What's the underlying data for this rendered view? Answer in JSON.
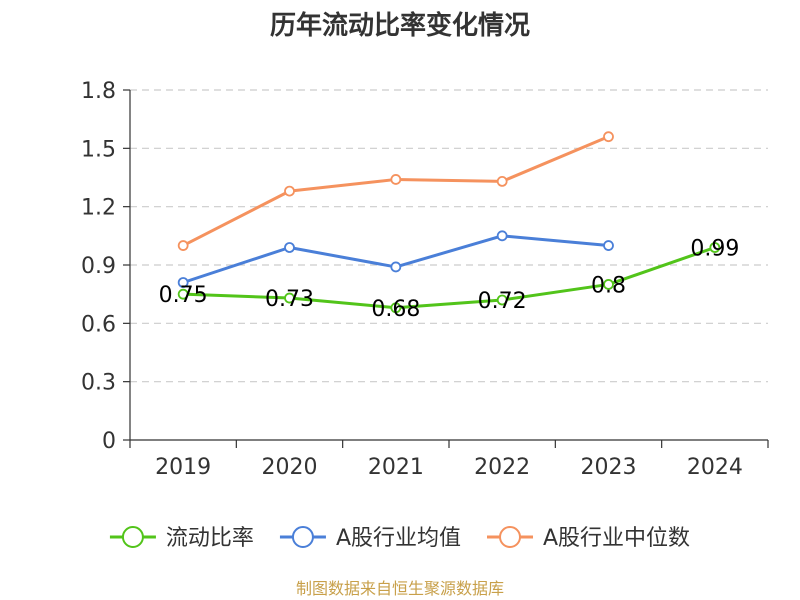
{
  "chart_data": {
    "type": "line",
    "title": "历年流动比率变化情况",
    "categories": [
      "2019",
      "2020",
      "2021",
      "2022",
      "2023",
      "2024"
    ],
    "ylim": [
      0,
      1.8
    ],
    "yticks": [
      "0",
      "0.3",
      "0.6",
      "0.9",
      "1.2",
      "1.5",
      "1.8"
    ],
    "grid": true,
    "legend_position": "bottom",
    "series": [
      {
        "name": "流动比率",
        "color": "#52c41a",
        "values": [
          0.75,
          0.73,
          0.68,
          0.72,
          0.8,
          0.99
        ],
        "labels": [
          "0.75",
          "0.73",
          "0.68",
          "0.72",
          "0.8",
          "0.99"
        ]
      },
      {
        "name": "A股行业均值",
        "color": "#4a7fd8",
        "values": [
          0.81,
          0.99,
          0.89,
          1.05,
          1.0,
          null
        ]
      },
      {
        "name": "A股行业中位数",
        "color": "#f5925e",
        "values": [
          1.0,
          1.28,
          1.34,
          1.33,
          1.56,
          null
        ]
      }
    ]
  },
  "source": "制图数据来自恒生聚源数据库"
}
